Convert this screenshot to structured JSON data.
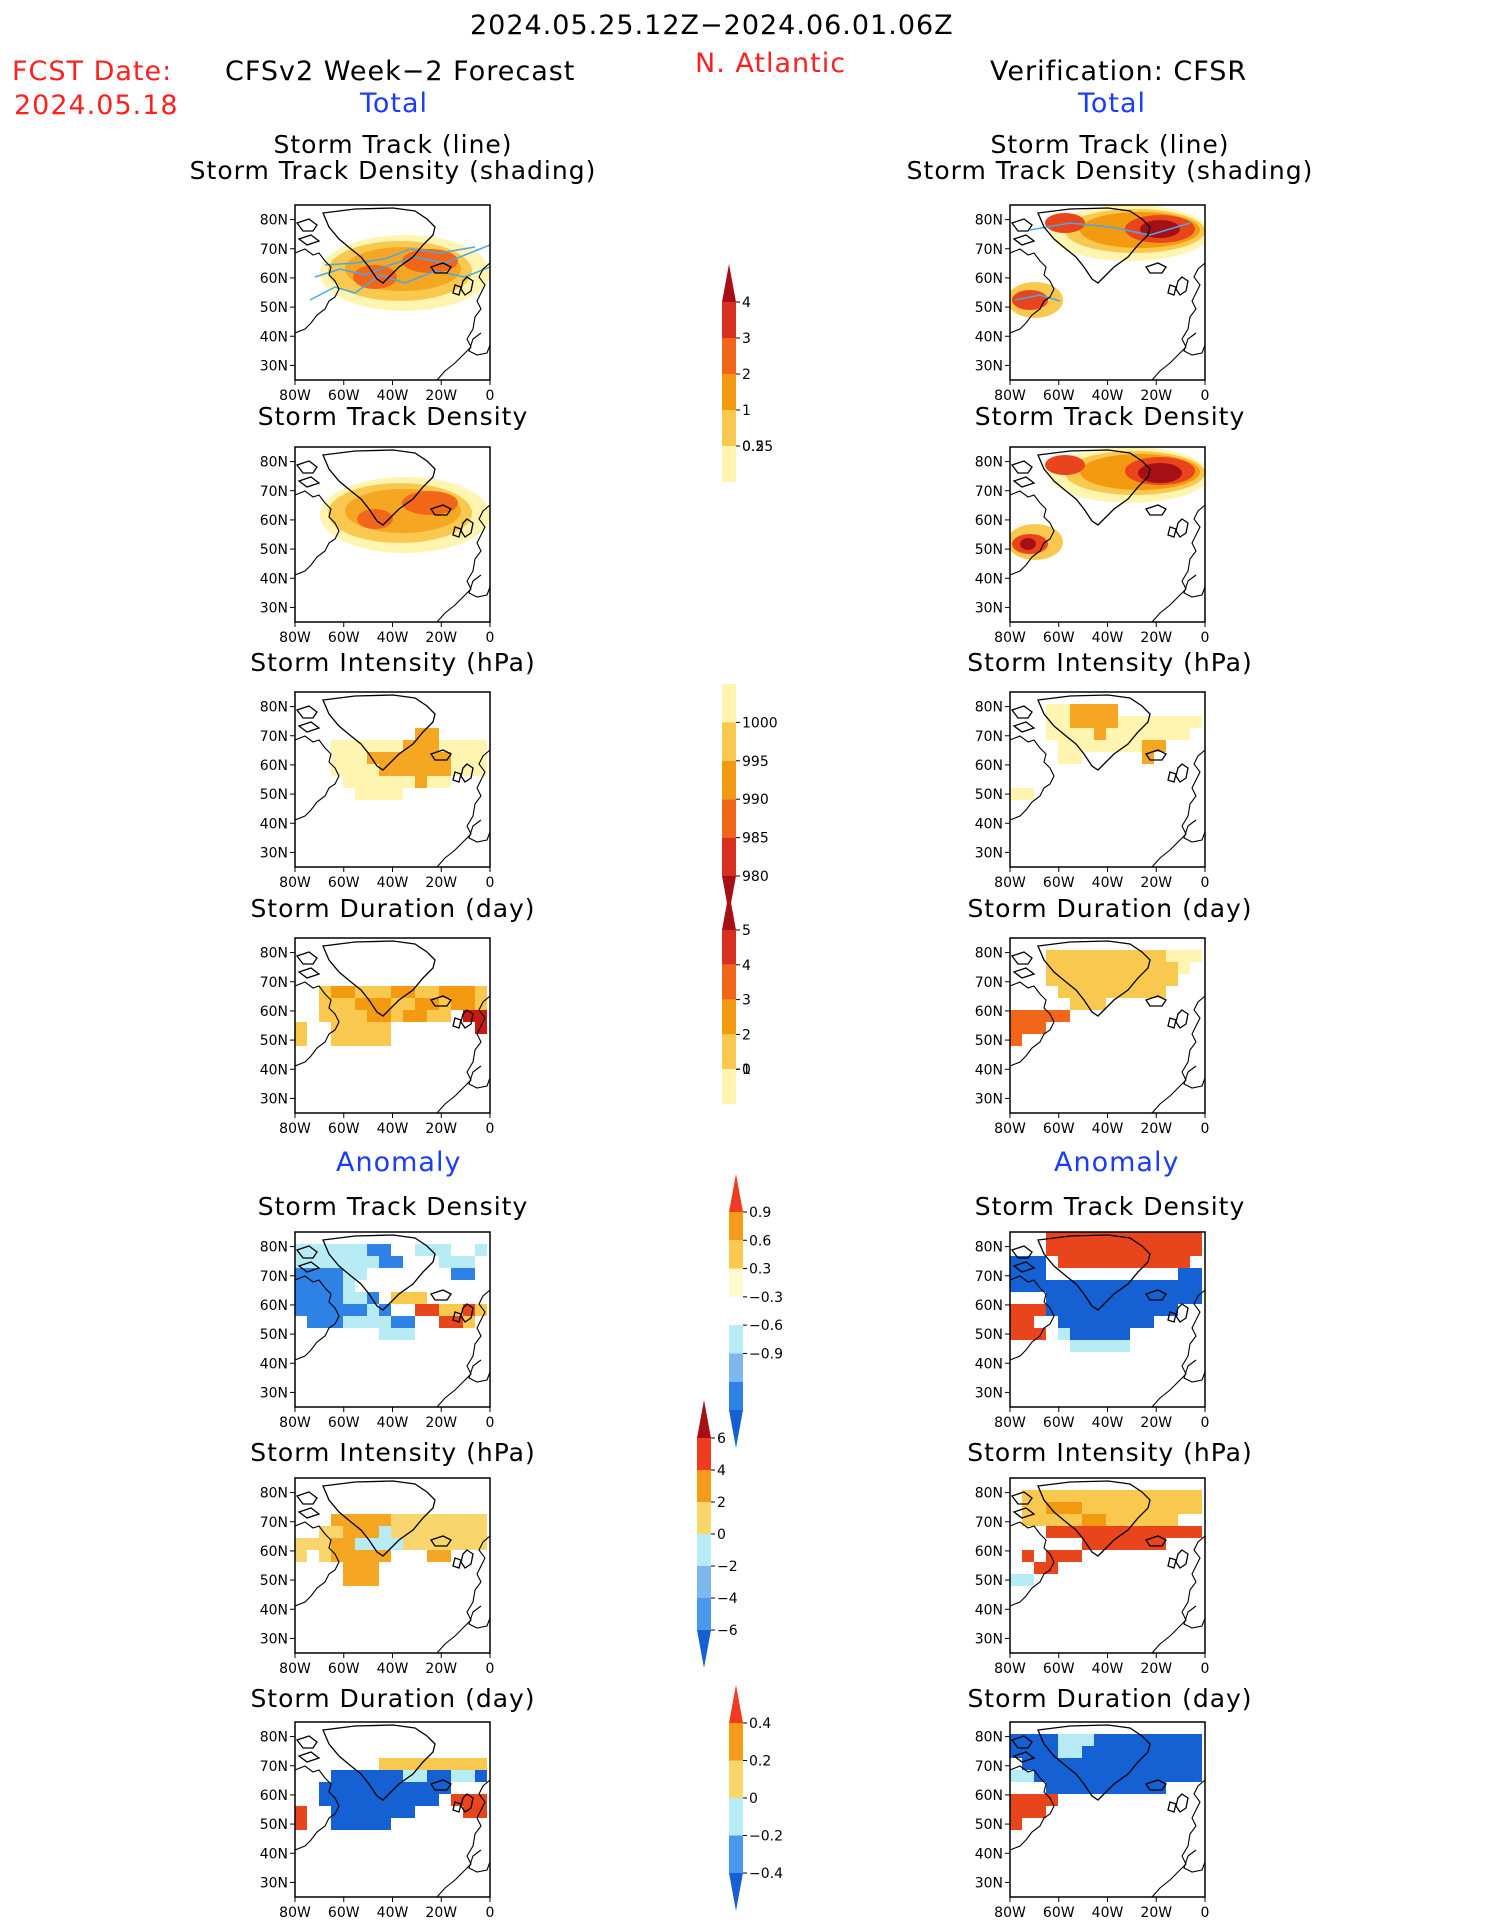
{
  "header": {
    "period": "2024.05.25.12Z−2024.06.01.06Z",
    "fcst_label": "FCST Date:",
    "fcst_date": "2024.05.18",
    "left_title": "CFSv2 Week−2 Forecast",
    "region": "N. Atlantic",
    "right_title": "Verification: CFSR",
    "total_label": "Total",
    "anomaly_label": "Anomaly"
  },
  "axes": {
    "lat_ticks": [
      "80N",
      "70N",
      "60N",
      "50N",
      "40N",
      "30N"
    ],
    "lon_ticks": [
      "80W",
      "60W",
      "40W",
      "20W",
      "0"
    ]
  },
  "panel_titles": {
    "track_line": "Storm Track (line)",
    "track_density_shading": "Storm Track Density (shading)",
    "track_density": "Storm Track Density",
    "intensity": "Storm Intensity (hPa)",
    "duration": "Storm Duration (day)"
  },
  "colorbars": [
    {
      "id": "density_total",
      "ticks": [
        "4",
        "3",
        "2",
        "1",
        "0.5",
        "0.25"
      ],
      "colors": [
        "#a50f15",
        "#d7301f",
        "#f2661a",
        "#f39a11",
        "#f8c94e",
        "#fff4b0"
      ],
      "arrow_top": true,
      "arrow_bottom": false
    },
    {
      "id": "intensity_total",
      "ticks": [
        "1000",
        "995",
        "990",
        "985",
        "980"
      ],
      "colors": [
        "#fff4b0",
        "#f8c94e",
        "#f39a11",
        "#f2661a",
        "#d7301f",
        "#a50f15"
      ],
      "arrow_top": false,
      "arrow_bottom": true
    },
    {
      "id": "duration_total",
      "ticks": [
        "5",
        "4",
        "3",
        "2",
        "1",
        "0"
      ],
      "colors": [
        "#a50f15",
        "#d7301f",
        "#f2661a",
        "#f39a11",
        "#f8c94e",
        "#fff4b0"
      ],
      "arrow_top": true,
      "arrow_bottom": false
    },
    {
      "id": "density_anom",
      "ticks": [
        "0.9",
        "0.6",
        "0.3",
        "−0.3",
        "−0.6",
        "−0.9"
      ],
      "colors": [
        "#f03b20",
        "#f59a19",
        "#f8c94e",
        "#fff8d0",
        "#ffffff",
        "#b7ecf7",
        "#7fb8ef",
        "#2e82e6",
        "#1560d2"
      ],
      "arrow_top": true,
      "arrow_bottom": true
    },
    {
      "id": "intensity_anom",
      "ticks": [
        "6",
        "4",
        "2",
        "0",
        "−2",
        "−4",
        "−6"
      ],
      "colors": [
        "#a50f15",
        "#f03b20",
        "#f59a19",
        "#f8d66d",
        "#b7ecf7",
        "#7fb8ef",
        "#4a98ea",
        "#1560d2"
      ],
      "arrow_top": true,
      "arrow_bottom": true
    },
    {
      "id": "duration_anom",
      "ticks": [
        "0.4",
        "0.2",
        "0",
        "−0.2",
        "−0.4"
      ],
      "colors": [
        "#f03b20",
        "#f59a19",
        "#f8d66d",
        "#b7ecf7",
        "#4a98ea",
        "#1560d2"
      ],
      "arrow_top": true,
      "arrow_bottom": true
    }
  ],
  "colors": {
    "accent_red": "#ff2020",
    "accent_blue": "#1a3cff",
    "track_line": "#4aa8e8"
  }
}
